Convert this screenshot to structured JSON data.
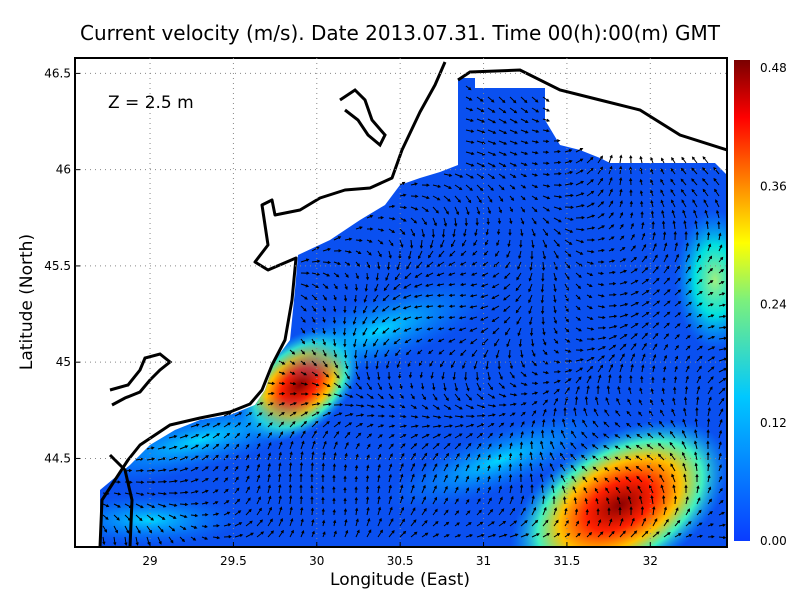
{
  "title": "Current velocity (m/s). Date 2013.07.31. Time 00(h):00(m) GMT",
  "depth_label": "Z = 2.5 m",
  "xaxis": {
    "label": "Longitude (East)",
    "ticks": [
      "29",
      "29.5",
      "30",
      "30.5",
      "31",
      "31.5",
      "32"
    ],
    "range": [
      28.55,
      32.46
    ]
  },
  "yaxis": {
    "label": "Latitude (North)",
    "ticks": [
      "44.5",
      "45",
      "45.5",
      "46",
      "46.5"
    ],
    "range": [
      44.04,
      46.58
    ]
  },
  "colorbar": {
    "ticks": [
      "0.00",
      "0.12",
      "0.24",
      "0.36",
      "0.48"
    ],
    "range": [
      0,
      0.48
    ],
    "colors": [
      "#0a3cff",
      "#00c8ff",
      "#7cf07c",
      "#ffff00",
      "#ff8000",
      "#ff0000",
      "#7a0000"
    ]
  },
  "colors": {
    "water_base": "#0a50f0",
    "land": "#ffffff",
    "coast": "#000000",
    "arrow": "#000000"
  }
}
